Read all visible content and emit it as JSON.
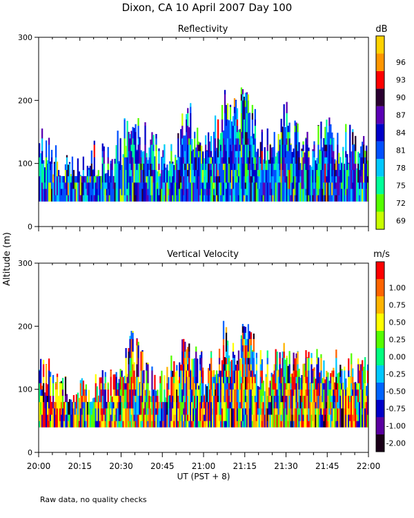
{
  "title": "Dixon, CA 10 April 2007  Day 100",
  "ylabel": "Altitude (m)",
  "xlabel": "UT  (PST + 8)",
  "footnote": "Raw data, no quality checks",
  "chart_data": [
    {
      "type": "heatmap",
      "title": "Reflectivity",
      "colorbar_unit": "dB",
      "colorbar_levels": [
        {
          "label": "69",
          "color": "#c8ff00"
        },
        {
          "label": "72",
          "color": "#55ff00"
        },
        {
          "label": "75",
          "color": "#00ff99"
        },
        {
          "label": "78",
          "color": "#00c8ff"
        },
        {
          "label": "81",
          "color": "#0050ff"
        },
        {
          "label": "84",
          "color": "#0000c8"
        },
        {
          "label": "87",
          "color": "#5a00b4"
        },
        {
          "label": "90",
          "color": "#2a0030"
        },
        {
          "label": "93",
          "color": "#ff0000"
        },
        {
          "label": "96",
          "color": "#ff9600"
        },
        {
          "label": "",
          "color": "#ffd200"
        }
      ],
      "y_ticks": [
        "0",
        "100",
        "200",
        "300"
      ],
      "ylim": [
        0,
        300
      ],
      "x_ticks": [
        "20:00",
        "20:15",
        "20:30",
        "20:45",
        "21:00",
        "21:15",
        "21:30",
        "21:45",
        "22:00"
      ],
      "xlim": [
        "20:00",
        "22:00"
      ],
      "echo_base_m": 40,
      "echo_top_profile": [
        {
          "time": "20:00",
          "top_m": 180
        },
        {
          "time": "20:05",
          "top_m": 140
        },
        {
          "time": "20:10",
          "top_m": 120
        },
        {
          "time": "20:15",
          "top_m": 120
        },
        {
          "time": "20:20",
          "top_m": 140
        },
        {
          "time": "20:25",
          "top_m": 130
        },
        {
          "time": "20:30",
          "top_m": 160
        },
        {
          "time": "20:33",
          "top_m": 200
        },
        {
          "time": "20:40",
          "top_m": 160
        },
        {
          "time": "20:45",
          "top_m": 140
        },
        {
          "time": "20:50",
          "top_m": 170
        },
        {
          "time": "20:55",
          "top_m": 200
        },
        {
          "time": "21:00",
          "top_m": 160
        },
        {
          "time": "21:05",
          "top_m": 180
        },
        {
          "time": "21:08",
          "top_m": 220
        },
        {
          "time": "21:12",
          "top_m": 200
        },
        {
          "time": "21:15",
          "top_m": 240
        },
        {
          "time": "21:20",
          "top_m": 170
        },
        {
          "time": "21:25",
          "top_m": 160
        },
        {
          "time": "21:30",
          "top_m": 200
        },
        {
          "time": "21:35",
          "top_m": 170
        },
        {
          "time": "21:40",
          "top_m": 160
        },
        {
          "time": "21:45",
          "top_m": 180
        },
        {
          "time": "21:50",
          "top_m": 170
        },
        {
          "time": "21:55",
          "top_m": 160
        },
        {
          "time": "22:00",
          "top_m": 160
        }
      ]
    },
    {
      "type": "heatmap",
      "title": "Vertical Velocity",
      "colorbar_unit": "m/s",
      "colorbar_levels": [
        {
          "label": "-2.00",
          "color": "#1a0018"
        },
        {
          "label": "-1.00",
          "color": "#5a00a0"
        },
        {
          "label": "-0.75",
          "color": "#0000c8"
        },
        {
          "label": "-0.50",
          "color": "#0064ff"
        },
        {
          "label": "-0.25",
          "color": "#00c8ff"
        },
        {
          "label": "0.00",
          "color": "#00ff80"
        },
        {
          "label": "0.25",
          "color": "#55ff00"
        },
        {
          "label": "0.50",
          "color": "#ffff00"
        },
        {
          "label": "0.75",
          "color": "#ffb400"
        },
        {
          "label": "1.00",
          "color": "#ff6400"
        },
        {
          "label": "",
          "color": "#ff0000"
        }
      ],
      "y_ticks": [
        "0",
        "100",
        "200",
        "300"
      ],
      "ylim": [
        0,
        300
      ],
      "x_ticks": [
        "20:00",
        "20:15",
        "20:30",
        "20:45",
        "21:00",
        "21:15",
        "21:30",
        "21:45",
        "22:00"
      ],
      "xlim": [
        "20:00",
        "22:00"
      ],
      "echo_base_m": 40,
      "echo_top_profile": [
        {
          "time": "20:00",
          "top_m": 180
        },
        {
          "time": "20:05",
          "top_m": 140
        },
        {
          "time": "20:10",
          "top_m": 120
        },
        {
          "time": "20:15",
          "top_m": 120
        },
        {
          "time": "20:20",
          "top_m": 140
        },
        {
          "time": "20:25",
          "top_m": 130
        },
        {
          "time": "20:30",
          "top_m": 160
        },
        {
          "time": "20:33",
          "top_m": 200
        },
        {
          "time": "20:40",
          "top_m": 160
        },
        {
          "time": "20:45",
          "top_m": 140
        },
        {
          "time": "20:50",
          "top_m": 170
        },
        {
          "time": "20:55",
          "top_m": 200
        },
        {
          "time": "21:00",
          "top_m": 160
        },
        {
          "time": "21:05",
          "top_m": 180
        },
        {
          "time": "21:08",
          "top_m": 220
        },
        {
          "time": "21:12",
          "top_m": 200
        },
        {
          "time": "21:15",
          "top_m": 240
        },
        {
          "time": "21:20",
          "top_m": 170
        },
        {
          "time": "21:25",
          "top_m": 160
        },
        {
          "time": "21:30",
          "top_m": 200
        },
        {
          "time": "21:35",
          "top_m": 170
        },
        {
          "time": "21:40",
          "top_m": 160
        },
        {
          "time": "21:45",
          "top_m": 180
        },
        {
          "time": "21:50",
          "top_m": 170
        },
        {
          "time": "21:55",
          "top_m": 160
        },
        {
          "time": "22:00",
          "top_m": 160
        }
      ]
    }
  ]
}
